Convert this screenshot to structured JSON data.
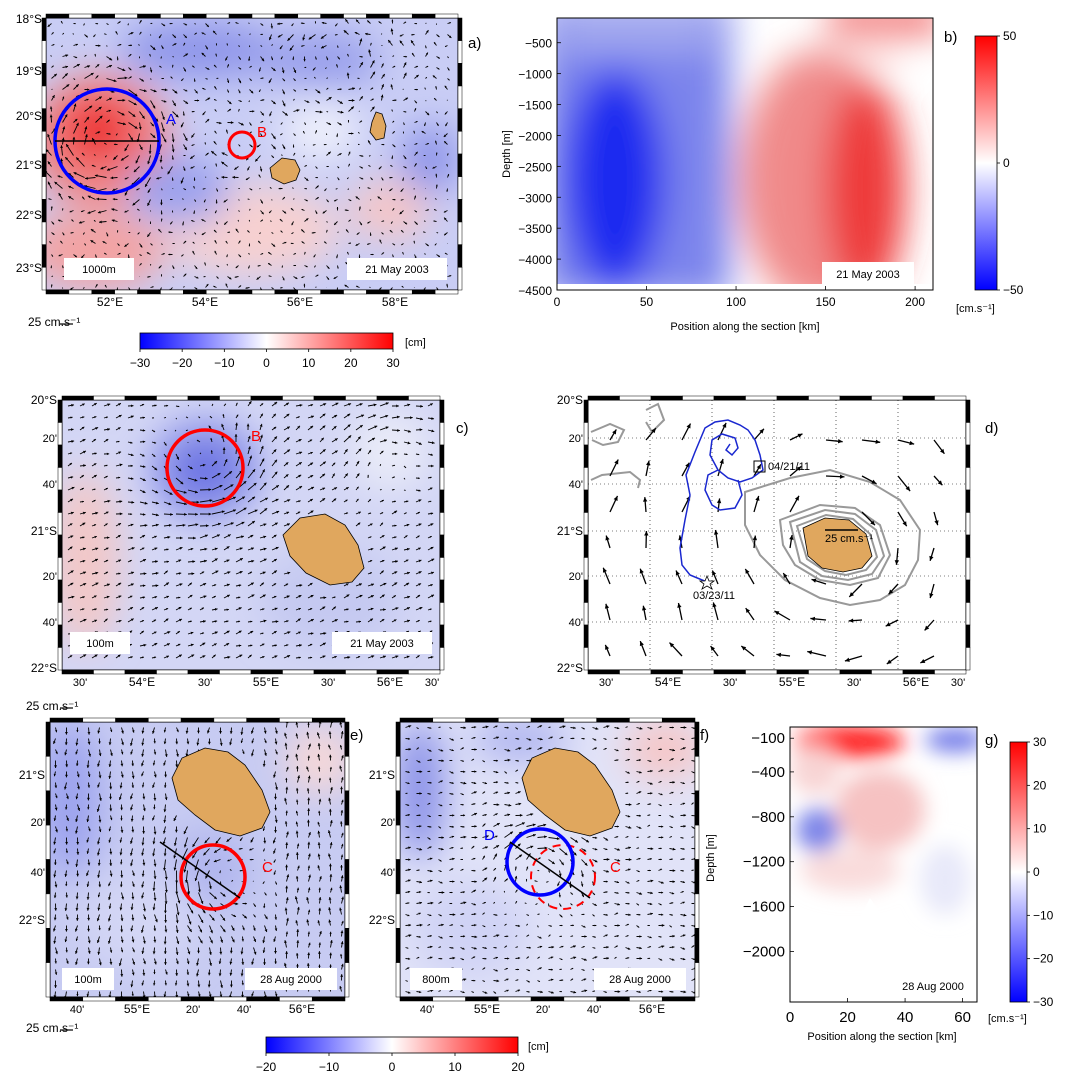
{
  "panels": {
    "a": {
      "label": "a)",
      "depth": "1000m",
      "date": "21 May 2003",
      "lat_ticks": [
        "18°S",
        "19°S",
        "20°S",
        "21°S",
        "22°S",
        "23°S"
      ],
      "lon_ticks": [
        "52°E",
        "54°E",
        "56°E",
        "58°E"
      ],
      "eddy_labels": [
        "A",
        "B"
      ],
      "scale_label": "25 cm.s⁻¹"
    },
    "b": {
      "label": "b)",
      "date": "21 May 2003",
      "ylabel": "Depth [m]",
      "xlabel": "Position along the section [km]",
      "cbar_unit": "[cm.s⁻¹]"
    },
    "c": {
      "label": "c)",
      "depth": "100m",
      "date": "21 May 2003",
      "lat_ticks": [
        "20°S",
        "20'",
        "40'",
        "21°S",
        "20'",
        "40'",
        "22°S"
      ],
      "lon_ticks": [
        "30'",
        "54°E",
        "30'",
        "55°E",
        "30'",
        "56°E",
        "30'"
      ],
      "eddy_label": "B",
      "scale_label": "25 cm.s⁻¹"
    },
    "d": {
      "label": "d)",
      "lat_ticks": [
        "20°S",
        "20'",
        "40'",
        "21°S",
        "20'",
        "40'",
        "22°S"
      ],
      "lon_ticks": [
        "30'",
        "54°E",
        "30'",
        "55°E",
        "30'",
        "56°E",
        "30'"
      ],
      "start_date": "03/23/11",
      "end_date": "04/21/11",
      "scale_label": "25 cm.s⁻¹"
    },
    "e": {
      "label": "e)",
      "depth": "100m",
      "date": "28 Aug 2000",
      "lat_ticks": [
        "21°S",
        "20'",
        "40'",
        "22°S"
      ],
      "lon_ticks": [
        "40'",
        "55°E",
        "20'",
        "40'",
        "56°E"
      ],
      "eddy_label": "C",
      "scale_label": "25 cm.s⁻¹"
    },
    "f": {
      "label": "f)",
      "depth": "800m",
      "date": "28 Aug 2000",
      "lat_ticks": [
        "21°S",
        "20'",
        "40'",
        "22°S"
      ],
      "lon_ticks": [
        "40'",
        "55°E",
        "20'",
        "40'",
        "56°E"
      ],
      "eddy_labels": [
        "D",
        "C"
      ]
    },
    "g": {
      "label": "g)",
      "date": "28 Aug 2000",
      "ylabel": "Depth [m]",
      "xlabel": "Position along the section [km]",
      "cbar_unit": "[cm.s⁻¹]"
    },
    "colorbar_top": {
      "unit": "[cm]"
    },
    "colorbar_bottom": {
      "unit": "[cm]"
    }
  },
  "chart_data": [
    {
      "id": "b",
      "type": "heatmap",
      "x_axis": {
        "ticks": [
          0,
          50,
          100,
          150,
          200
        ],
        "range": [
          0,
          210
        ]
      },
      "y_axis": {
        "ticks": [
          -500,
          -1000,
          -1500,
          -2000,
          -2500,
          -3000,
          -3500,
          -4000,
          -4500
        ],
        "range": [
          -4500,
          -100
        ]
      },
      "colorbar": {
        "ticks": [
          50,
          0,
          -50
        ],
        "range": [
          -50,
          50
        ],
        "colors": [
          "#0000ff",
          "#ffffff",
          "#ff0000"
        ]
      }
    },
    {
      "id": "g",
      "type": "heatmap",
      "x_axis": {
        "ticks": [
          0,
          20,
          40,
          60
        ],
        "range": [
          0,
          65
        ]
      },
      "y_axis": {
        "ticks": [
          -100,
          -400,
          -800,
          -1200,
          -1600,
          -2000
        ],
        "range": [
          -2450,
          0
        ]
      },
      "colorbar": {
        "ticks": [
          30,
          20,
          10,
          0,
          -10,
          -20,
          -30
        ],
        "range": [
          -30,
          30
        ],
        "colors": [
          "#0000ff",
          "#ffffff",
          "#ff0000"
        ]
      }
    },
    {
      "id": "colorbar_top",
      "type": "heatmap",
      "ticks": [
        -30,
        -20,
        -10,
        0,
        10,
        20,
        30
      ],
      "range": [
        -30,
        30
      ]
    },
    {
      "id": "colorbar_bottom",
      "type": "heatmap",
      "ticks": [
        -20,
        -10,
        0,
        10,
        20
      ],
      "range": [
        -20,
        20
      ]
    }
  ]
}
